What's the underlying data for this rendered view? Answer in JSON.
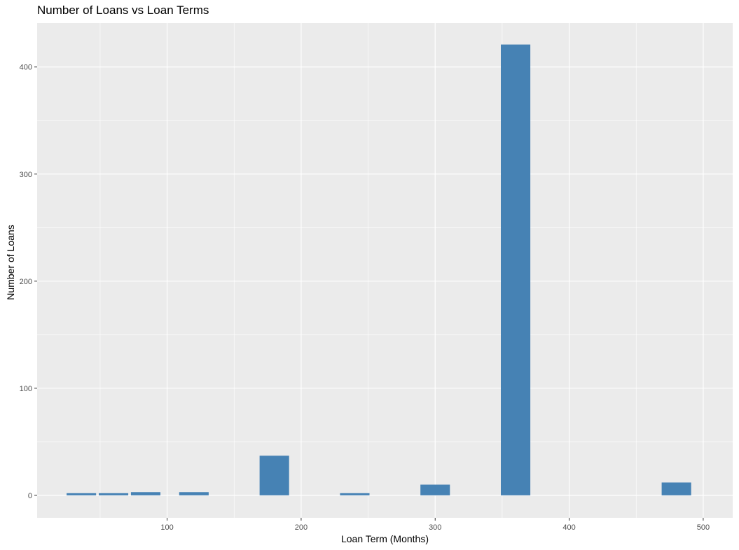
{
  "chart_data": {
    "type": "bar",
    "title": "Number of Loans vs Loan Terms",
    "xlabel": "Loan Term (Months)",
    "ylabel": "Number of Loans",
    "xlim": [
      3,
      522
    ],
    "ylim": [
      -21,
      441
    ],
    "x_ticks": [
      100,
      200,
      300,
      400,
      500
    ],
    "y_ticks": [
      0,
      100,
      200,
      300,
      400
    ],
    "bin_width": 22,
    "bars": [
      {
        "x": 36,
        "value": 2
      },
      {
        "x": 60,
        "value": 2
      },
      {
        "x": 84,
        "value": 3
      },
      {
        "x": 120,
        "value": 3
      },
      {
        "x": 180,
        "value": 37
      },
      {
        "x": 240,
        "value": 2
      },
      {
        "x": 300,
        "value": 10
      },
      {
        "x": 360,
        "value": 421
      },
      {
        "x": 480,
        "value": 12
      }
    ],
    "grid": true,
    "colors": {
      "bar": "#4682B4",
      "panel": "#EBEBEB",
      "grid": "#FFFFFF"
    }
  }
}
